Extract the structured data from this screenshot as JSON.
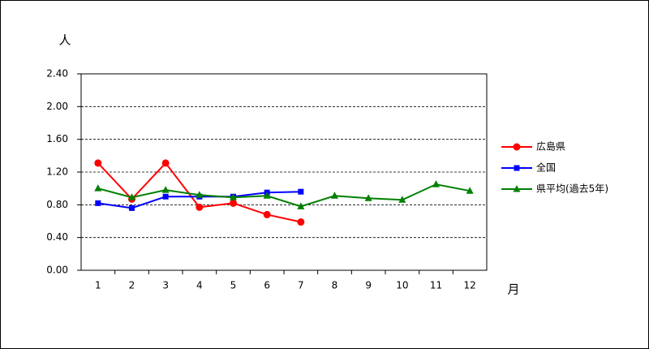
{
  "chart_data": {
    "type": "line",
    "y_label": "人",
    "x_label": "月",
    "categories": [
      "1",
      "2",
      "3",
      "4",
      "5",
      "6",
      "7",
      "8",
      "9",
      "10",
      "11",
      "12"
    ],
    "series": [
      {
        "name": "広島県",
        "color": "#ff0000",
        "marker": "circle",
        "values": [
          1.31,
          0.87,
          1.31,
          0.77,
          0.82,
          0.68,
          0.59,
          null,
          null,
          null,
          null,
          null
        ]
      },
      {
        "name": "全国",
        "color": "#0000ff",
        "marker": "square",
        "values": [
          0.82,
          0.76,
          0.9,
          0.9,
          0.9,
          0.95,
          0.96,
          null,
          null,
          null,
          null,
          null
        ]
      },
      {
        "name": "県平均(過去5年)",
        "color": "#008000",
        "marker": "triangle",
        "values": [
          1.0,
          0.89,
          0.98,
          0.92,
          0.89,
          0.91,
          0.78,
          0.91,
          0.88,
          0.86,
          1.05,
          0.97
        ]
      }
    ],
    "ylim": [
      0,
      2.4
    ],
    "yticks": [
      {
        "value": 0,
        "label": "0.00"
      },
      {
        "value": 0.4,
        "label": "0.40"
      },
      {
        "value": 0.8,
        "label": "0.80"
      },
      {
        "value": 1.2,
        "label": "1.20"
      },
      {
        "value": 1.6,
        "label": "1.60"
      },
      {
        "value": 2,
        "label": "2.00"
      },
      {
        "value": 2.4,
        "label": "2.40"
      }
    ],
    "grid": true,
    "legend": "right"
  }
}
